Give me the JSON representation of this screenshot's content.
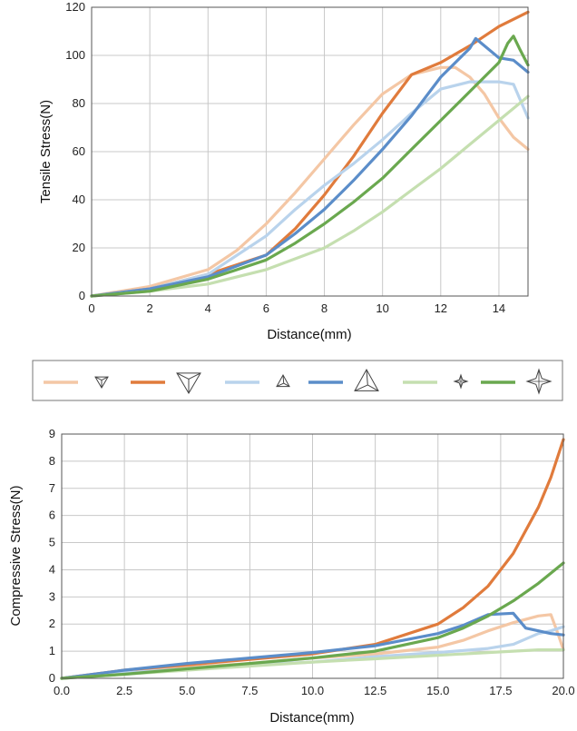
{
  "legend": {
    "entries": [
      {
        "color": "#f4c7a5",
        "icon": "small-triangular-pyramid-icon"
      },
      {
        "color": "#e07b3c",
        "icon": "large-triangular-pyramid-icon"
      },
      {
        "color": "#b9d3ec",
        "icon": "small-tetrahedron-icon"
      },
      {
        "color": "#5b8dc9",
        "icon": "large-tetrahedron-icon"
      },
      {
        "color": "#c5dfb0",
        "icon": "small-four-point-star-icon"
      },
      {
        "color": "#6aa84f",
        "icon": "large-four-point-star-icon"
      }
    ]
  },
  "chart_data": [
    {
      "type": "line",
      "title": "",
      "xlabel": "Distance(mm)",
      "ylabel": "Tensile Stress(N)",
      "xlim": [
        0,
        15
      ],
      "ylim": [
        0,
        120
      ],
      "xticks": [
        "0",
        "2",
        "4",
        "6",
        "8",
        "10",
        "12",
        "14"
      ],
      "yticks": [
        "0",
        "20",
        "40",
        "60",
        "80",
        "100",
        "120"
      ],
      "grid": true,
      "series": [
        {
          "color": "#f4c7a5",
          "x": [
            0,
            2,
            4,
            5,
            6,
            7,
            8,
            9,
            10,
            11,
            12,
            12.5,
            13,
            13.5,
            14,
            14.5,
            15
          ],
          "y": [
            0,
            4,
            11,
            19,
            30,
            43,
            57,
            71,
            84,
            92,
            95,
            95,
            91,
            84,
            74,
            66,
            61
          ]
        },
        {
          "color": "#e07b3c",
          "x": [
            0,
            2,
            4,
            6,
            7,
            8,
            9,
            10,
            11,
            12,
            13,
            14,
            15
          ],
          "y": [
            0,
            3,
            9,
            17,
            28,
            42,
            58,
            76,
            92,
            97,
            104,
            112,
            118
          ]
        },
        {
          "color": "#b9d3ec",
          "x": [
            0,
            2,
            4,
            6,
            7,
            8,
            9,
            10,
            11,
            12,
            13,
            14,
            14.5,
            15
          ],
          "y": [
            0,
            3,
            9,
            25,
            36,
            46,
            55,
            65,
            76,
            86,
            89,
            89,
            88,
            74
          ]
        },
        {
          "color": "#5b8dc9",
          "x": [
            0,
            2,
            4,
            6,
            7,
            8,
            9,
            10,
            11,
            12,
            13,
            13.2,
            14,
            14.5,
            15
          ],
          "y": [
            0,
            3,
            8,
            17,
            26,
            36,
            48,
            61,
            75,
            91,
            103,
            107,
            99,
            98,
            93
          ]
        },
        {
          "color": "#c5dfb0",
          "x": [
            0,
            2,
            4,
            6,
            8,
            9,
            10,
            11,
            12,
            13,
            14,
            15
          ],
          "y": [
            0,
            2,
            5,
            11,
            20,
            27,
            35,
            44,
            53,
            63,
            73,
            83
          ]
        },
        {
          "color": "#6aa84f",
          "x": [
            0,
            2,
            4,
            6,
            7,
            8,
            9,
            10,
            11,
            12,
            13,
            14,
            14.3,
            14.5,
            14.7,
            15
          ],
          "y": [
            0,
            2,
            7,
            15,
            22,
            30,
            39,
            49,
            61,
            73,
            85,
            97,
            105,
            108,
            103,
            96
          ]
        }
      ]
    },
    {
      "type": "line",
      "title": "",
      "xlabel": "Distance(mm)",
      "ylabel": "Compressive Stress(N)",
      "xlim": [
        0,
        20
      ],
      "ylim": [
        0,
        9
      ],
      "xticks": [
        "0.0",
        "2.5",
        "5.0",
        "7.5",
        "10.0",
        "12.5",
        "15.0",
        "17.5",
        "20.0"
      ],
      "yticks": [
        "0",
        "1",
        "2",
        "3",
        "4",
        "5",
        "6",
        "7",
        "8",
        "9"
      ],
      "grid": true,
      "series": [
        {
          "color": "#f4c7a5",
          "x": [
            0,
            2.5,
            5,
            7.5,
            10,
            12.5,
            15,
            16,
            17,
            18,
            19,
            19.5,
            19.8,
            20
          ],
          "y": [
            0,
            0.2,
            0.4,
            0.55,
            0.75,
            0.9,
            1.15,
            1.4,
            1.75,
            2.05,
            2.3,
            2.35,
            1.6,
            1.05
          ]
        },
        {
          "color": "#e07b3c",
          "x": [
            0,
            2.5,
            5,
            7.5,
            10,
            12.5,
            15,
            16,
            17,
            18,
            19,
            19.5,
            20
          ],
          "y": [
            0,
            0.3,
            0.5,
            0.7,
            0.9,
            1.25,
            2.0,
            2.6,
            3.4,
            4.6,
            6.3,
            7.4,
            8.8
          ]
        },
        {
          "color": "#b9d3ec",
          "x": [
            0,
            2.5,
            5,
            7.5,
            10,
            12.5,
            15,
            17,
            18,
            18.5,
            19,
            19.5,
            20
          ],
          "y": [
            0,
            0.2,
            0.35,
            0.5,
            0.6,
            0.8,
            0.95,
            1.1,
            1.25,
            1.45,
            1.65,
            1.75,
            1.9
          ]
        },
        {
          "color": "#5b8dc9",
          "x": [
            0,
            2.5,
            5,
            7.5,
            10,
            12.5,
            15,
            16,
            17,
            18,
            18.5,
            19,
            19.5,
            20
          ],
          "y": [
            0,
            0.3,
            0.55,
            0.75,
            0.95,
            1.2,
            1.65,
            1.95,
            2.35,
            2.4,
            1.85,
            1.75,
            1.65,
            1.6
          ]
        },
        {
          "color": "#c5dfb0",
          "x": [
            0,
            2.5,
            5,
            7.5,
            10,
            12.5,
            15,
            17,
            18,
            19,
            20
          ],
          "y": [
            0,
            0.15,
            0.3,
            0.45,
            0.6,
            0.72,
            0.85,
            0.95,
            1.0,
            1.05,
            1.05
          ]
        },
        {
          "color": "#6aa84f",
          "x": [
            0,
            2.5,
            5,
            7.5,
            10,
            12.5,
            15,
            16,
            17,
            18,
            19,
            20
          ],
          "y": [
            0,
            0.15,
            0.35,
            0.55,
            0.75,
            1.0,
            1.5,
            1.85,
            2.3,
            2.85,
            3.5,
            4.25
          ]
        }
      ]
    }
  ]
}
